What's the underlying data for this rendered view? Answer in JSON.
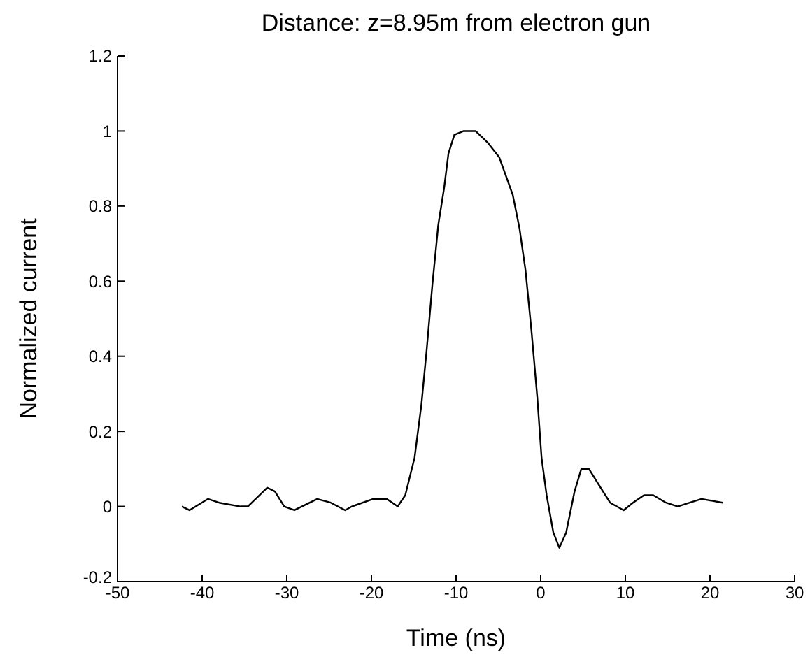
{
  "chart_data": {
    "type": "line",
    "title": "Distance: z=8.95m from electron gun",
    "xlabel": "Time (ns)",
    "ylabel": "Normalized current",
    "xlim": [
      -50,
      30
    ],
    "xticks": [
      -50,
      -40,
      -30,
      -20,
      -10,
      0,
      10,
      20,
      30
    ],
    "ylim": [
      -0.2,
      1.2
    ],
    "yticks": [
      -0.2,
      0,
      0.2,
      0.4,
      0.6,
      0.8,
      1,
      1.2
    ],
    "grid": false,
    "marker": "none",
    "line_style": "solid",
    "series": [
      {
        "color": "#000000",
        "x": [
          -42.4,
          -41.5,
          -39.3,
          -38.0,
          -35.5,
          -34.6,
          -32.3,
          -31.4,
          -30.3,
          -29.1,
          -26.4,
          -24.8,
          -23.1,
          -22.3,
          -19.8,
          -18.2,
          -16.9,
          -16.0,
          -14.9,
          -14.1,
          -13.5,
          -12.8,
          -12.1,
          -11.4,
          -10.9,
          -10.2,
          -9.1,
          -7.7,
          -6.3,
          -4.9,
          -3.3,
          -2.5,
          -1.8,
          -1.1,
          -0.4,
          0.1,
          0.7,
          1.5,
          2.2,
          3.0,
          4.0,
          4.8,
          5.7,
          6.8,
          8.2,
          9.8,
          10.9,
          12.2,
          13.3,
          14.8,
          16.2,
          17.6,
          19.0,
          21.5
        ],
        "values": [
          0.0,
          -0.01,
          0.02,
          0.01,
          0.0,
          0.0,
          0.05,
          0.04,
          0.0,
          -0.01,
          0.02,
          0.01,
          -0.01,
          0.0,
          0.02,
          0.02,
          0.0,
          0.03,
          0.13,
          0.27,
          0.41,
          0.59,
          0.75,
          0.85,
          0.94,
          0.99,
          1.0,
          1.0,
          0.97,
          0.93,
          0.83,
          0.74,
          0.63,
          0.47,
          0.29,
          0.13,
          0.03,
          -0.07,
          -0.11,
          -0.07,
          0.04,
          0.1,
          0.1,
          0.06,
          0.01,
          -0.01,
          0.01,
          0.03,
          0.03,
          0.01,
          0.0,
          0.01,
          0.02,
          0.01
        ]
      }
    ]
  }
}
